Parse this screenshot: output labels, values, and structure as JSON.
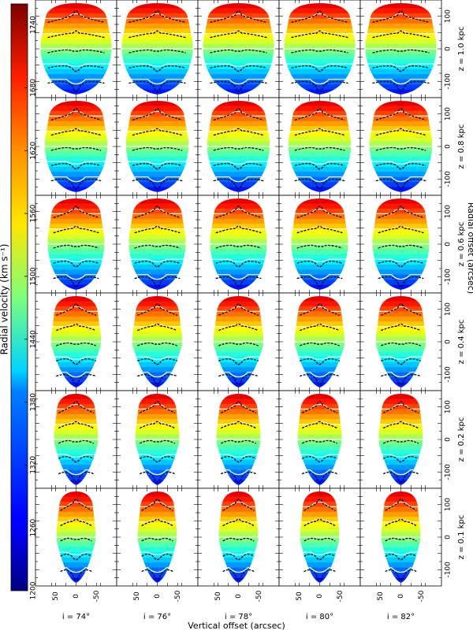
{
  "chart_data": {
    "type": "heatmap",
    "description_note": "",
    "colorbar": {
      "label": "Radial velocity (km s⁻¹)",
      "ticks": [
        1200,
        1260,
        1320,
        1380,
        1440,
        1500,
        1560,
        1620,
        1680,
        1740
      ],
      "range": [
        1200,
        1760
      ],
      "colormap": "jet"
    },
    "columns": [
      {
        "label": "i = 74°"
      },
      {
        "label": "i = 76°"
      },
      {
        "label": "i = 78°"
      },
      {
        "label": "i = 80°"
      },
      {
        "label": "i = 82°"
      }
    ],
    "rows": [
      {
        "label": "z = 1.0 kpc",
        "width_fraction": 1.0
      },
      {
        "label": "z = 0.8 kpc",
        "width_fraction": 0.88
      },
      {
        "label": "z = 0.6 kpc",
        "width_fraction": 0.8
      },
      {
        "label": "z = 0.4 kpc",
        "width_fraction": 0.7
      },
      {
        "label": "z = 0.2 kpc",
        "width_fraction": 0.62
      },
      {
        "label": "z = 0.1 kpc",
        "width_fraction": 0.55
      }
    ],
    "x_ticks": [
      "50",
      "0",
      "-50"
    ],
    "y_ticks": [
      "100",
      "0",
      "-100"
    ],
    "xlabel": "Vertical offset (arcsec)",
    "ylabel": "Radial offset (arcsec)",
    "y_range": [
      -150,
      150
    ]
  }
}
